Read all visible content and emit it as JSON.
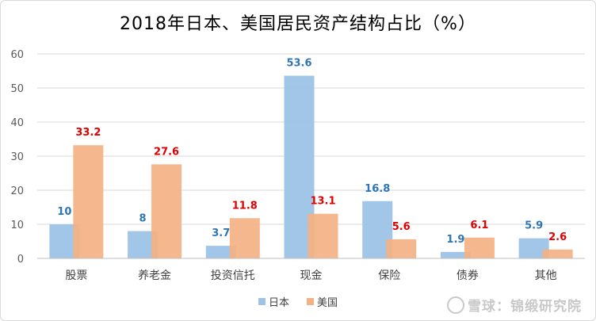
{
  "chart_data": {
    "type": "bar",
    "title": "2018年日本、美国居民资产结构占比（%）",
    "categories": [
      "股票",
      "养老金",
      "投资信托",
      "现金",
      "保险",
      "债券",
      "其他"
    ],
    "series": [
      {
        "name": "日本",
        "color": "#9dc3e6",
        "label_color": "#2e75b6",
        "values": [
          10,
          8,
          3.7,
          53.6,
          16.8,
          1.9,
          5.9
        ],
        "labels": [
          "10",
          "8",
          "3.7",
          "53.6",
          "16.8",
          "1.9",
          "5.9"
        ]
      },
      {
        "name": "美国",
        "color": "#f4b183",
        "label_color": "#e00000",
        "values": [
          33.2,
          27.6,
          11.8,
          13.1,
          5.6,
          6.1,
          2.6
        ],
        "labels": [
          "33.2",
          "27.6",
          "11.8",
          "13.1",
          "5.6",
          "6.1",
          "2.6"
        ]
      }
    ],
    "ylim": [
      0,
      60
    ],
    "yticks": [
      "0",
      "10",
      "20",
      "30",
      "40",
      "50",
      "60"
    ],
    "grid": true,
    "legend_position": "bottom"
  },
  "watermark": {
    "text": "雪球：锦缎研究院"
  }
}
